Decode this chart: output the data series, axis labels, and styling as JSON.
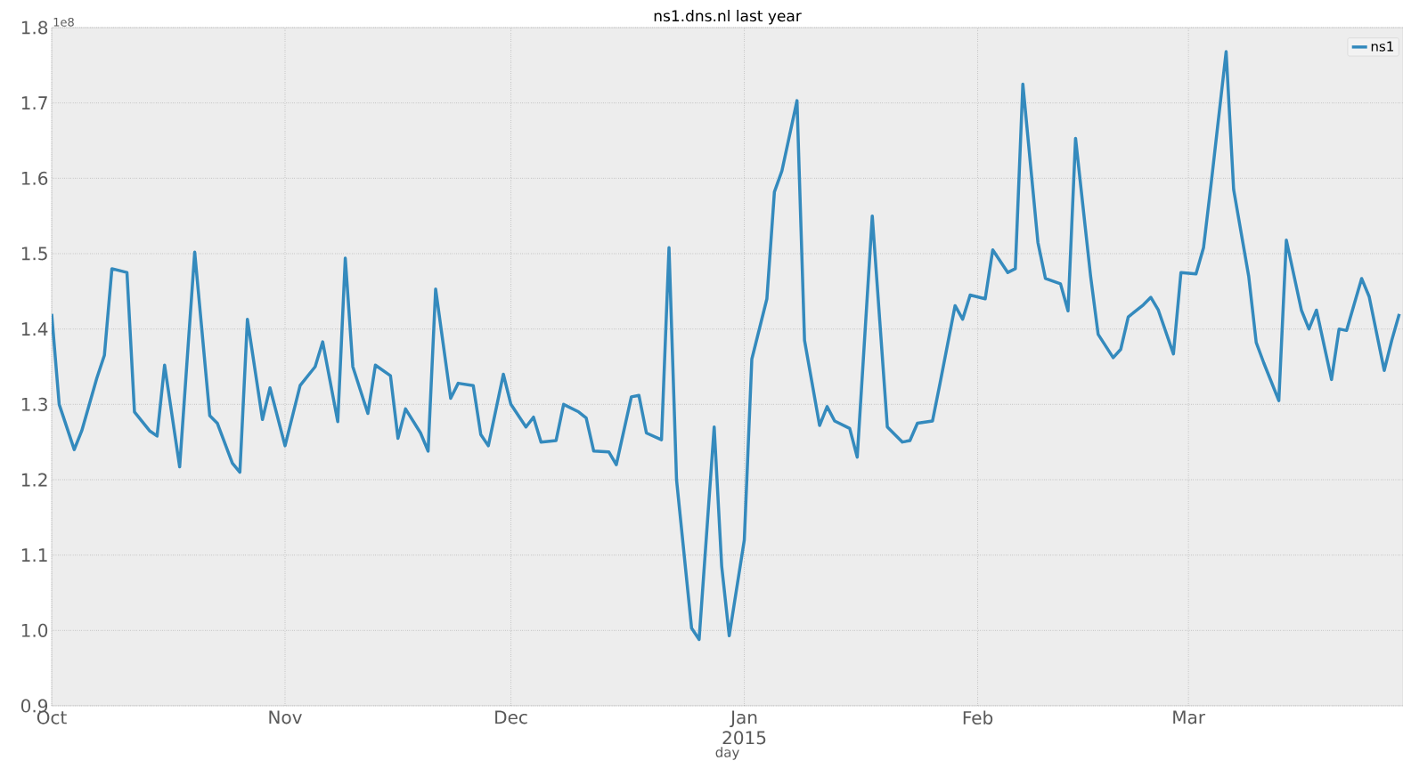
{
  "chart_data": {
    "type": "line",
    "title": "ns1.dns.nl last year",
    "xlabel": "day",
    "annotations": [
      "1e8"
    ],
    "x": [
      "2014-10-01",
      "2014-10-02",
      "2014-10-04",
      "2014-10-05",
      "2014-10-07",
      "2014-10-08",
      "2014-10-09",
      "2014-10-11",
      "2014-10-12",
      "2014-10-14",
      "2014-10-15",
      "2014-10-16",
      "2014-10-18",
      "2014-10-19",
      "2014-10-20",
      "2014-10-22",
      "2014-10-23",
      "2014-10-25",
      "2014-10-26",
      "2014-10-27",
      "2014-10-29",
      "2014-10-30",
      "2014-11-01",
      "2014-11-02",
      "2014-11-03",
      "2014-11-05",
      "2014-11-06",
      "2014-11-08",
      "2014-11-09",
      "2014-11-10",
      "2014-11-12",
      "2014-11-13",
      "2014-11-15",
      "2014-11-16",
      "2014-11-17",
      "2014-11-19",
      "2014-11-20",
      "2014-11-21",
      "2014-11-23",
      "2014-11-24",
      "2014-11-26",
      "2014-11-27",
      "2014-11-28",
      "2014-11-30",
      "2014-12-01",
      "2014-12-03",
      "2014-12-04",
      "2014-12-05",
      "2014-12-07",
      "2014-12-08",
      "2014-12-10",
      "2014-12-11",
      "2014-12-12",
      "2014-12-14",
      "2014-12-15",
      "2014-12-17",
      "2014-12-18",
      "2014-12-19",
      "2014-12-21",
      "2014-12-22",
      "2014-12-23",
      "2014-12-25",
      "2014-12-26",
      "2014-12-28",
      "2014-12-29",
      "2014-12-30",
      "2015-01-01",
      "2015-01-02",
      "2015-01-04",
      "2015-01-05",
      "2015-01-06",
      "2015-01-08",
      "2015-01-09",
      "2015-01-11",
      "2015-01-12",
      "2015-01-13",
      "2015-01-15",
      "2015-01-16",
      "2015-01-18",
      "2015-01-19",
      "2015-01-20",
      "2015-01-22",
      "2015-01-23",
      "2015-01-24",
      "2015-01-26",
      "2015-01-27",
      "2015-01-29",
      "2015-01-30",
      "2015-01-31",
      "2015-02-02",
      "2015-02-03",
      "2015-02-05",
      "2015-02-06",
      "2015-02-07",
      "2015-02-09",
      "2015-02-10",
      "2015-02-12",
      "2015-02-13",
      "2015-02-14",
      "2015-02-16",
      "2015-02-17",
      "2015-02-19",
      "2015-02-20",
      "2015-02-21",
      "2015-02-23",
      "2015-02-24",
      "2015-02-25",
      "2015-02-27",
      "2015-02-28",
      "2015-03-02",
      "2015-03-03",
      "2015-03-04",
      "2015-03-06",
      "2015-03-07",
      "2015-03-09",
      "2015-03-10",
      "2015-03-11",
      "2015-03-13",
      "2015-03-14",
      "2015-03-16",
      "2015-03-17",
      "2015-03-18",
      "2015-03-20",
      "2015-03-21",
      "2015-03-22",
      "2015-03-24",
      "2015-03-25",
      "2015-03-27",
      "2015-03-28",
      "2015-03-29"
    ],
    "series": [
      {
        "name": "ns1",
        "color": "#348abd",
        "values": [
          1.42,
          1.3,
          1.24,
          1.265,
          1.335,
          1.365,
          1.48,
          1.475,
          1.29,
          1.265,
          1.258,
          1.352,
          1.217,
          1.36,
          1.502,
          1.285,
          1.275,
          1.222,
          1.21,
          1.413,
          1.28,
          1.322,
          1.245,
          1.285,
          1.325,
          1.35,
          1.383,
          1.277,
          1.494,
          1.35,
          1.288,
          1.352,
          1.338,
          1.255,
          1.294,
          1.262,
          1.238,
          1.453,
          1.308,
          1.328,
          1.325,
          1.26,
          1.245,
          1.34,
          1.3,
          1.27,
          1.283,
          1.25,
          1.252,
          1.3,
          1.29,
          1.282,
          1.238,
          1.237,
          1.22,
          1.31,
          1.312,
          1.262,
          1.253,
          1.508,
          1.2,
          1.003,
          0.988,
          1.27,
          1.085,
          0.993,
          1.12,
          1.36,
          1.44,
          1.582,
          1.61,
          1.703,
          1.385,
          1.272,
          1.297,
          1.278,
          1.268,
          1.23,
          1.55,
          1.41,
          1.27,
          1.25,
          1.252,
          1.275,
          1.278,
          1.328,
          1.431,
          1.413,
          1.445,
          1.44,
          1.505,
          1.475,
          1.48,
          1.725,
          1.515,
          1.467,
          1.46,
          1.424,
          1.653,
          1.47,
          1.393,
          1.362,
          1.373,
          1.416,
          1.432,
          1.442,
          1.425,
          1.367,
          1.475,
          1.473,
          1.508,
          1.592,
          1.768,
          1.585,
          1.47,
          1.382,
          1.355,
          1.305,
          1.518,
          1.425,
          1.4,
          1.425,
          1.333,
          1.4,
          1.398,
          1.467,
          1.443,
          1.345,
          1.385,
          1.42
        ]
      }
    ],
    "xlim": [
      "2014-10-01",
      "2015-03-29T12:00"
    ],
    "xticks": [
      {
        "value": "2014-10-01",
        "label": "Oct"
      },
      {
        "value": "2014-11-01",
        "label": "Nov"
      },
      {
        "value": "2014-12-01",
        "label": "Dec"
      },
      {
        "value": "2015-01-01",
        "label": "Jan 2015"
      },
      {
        "value": "2015-02-01",
        "label": "Feb"
      },
      {
        "value": "2015-03-01",
        "label": "Mar"
      }
    ],
    "ylim": [
      0.9,
      1.8
    ],
    "yticks": [
      0.9,
      {
        "value": 1,
        "label": "1.0"
      },
      1.1,
      1.2,
      1.3,
      1.4,
      1.5,
      1.6,
      1.7,
      1.8
    ],
    "grid": true,
    "legend": "top right",
    "marker": "none",
    "line_style": "solid"
  }
}
